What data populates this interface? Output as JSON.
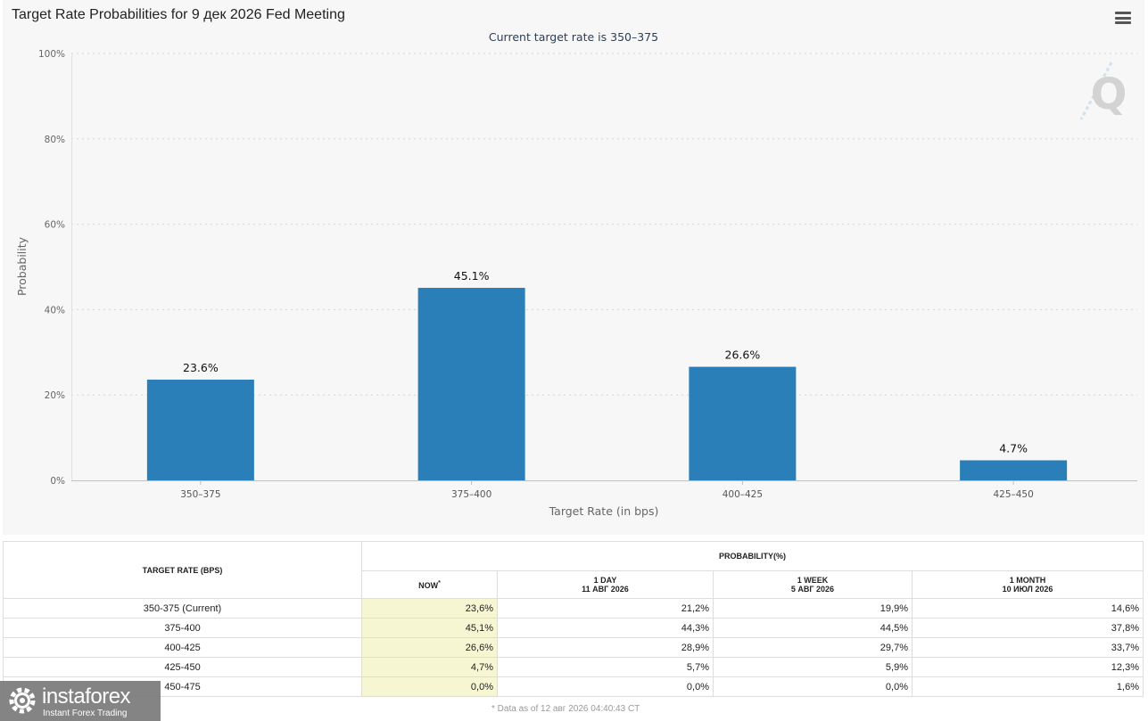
{
  "header": {
    "title": "Target Rate Probabilities for 9 дек 2026 Fed Meeting",
    "menu_icon": "hamburger-menu-icon"
  },
  "chart_data": {
    "type": "bar",
    "subtitle": "Current target rate is 350–375",
    "xlabel": "Target Rate (in bps)",
    "ylabel": "Probability",
    "categories": [
      "350–375",
      "375–400",
      "400–425",
      "425–450"
    ],
    "values": [
      23.6,
      45.1,
      26.6,
      4.7
    ],
    "data_labels": [
      "23.6%",
      "45.1%",
      "26.6%",
      "4.7%"
    ],
    "ylim": [
      0,
      100
    ],
    "yticks": [
      0,
      20,
      40,
      60,
      80,
      100
    ],
    "ytick_labels": [
      "0%",
      "20%",
      "40%",
      "60%",
      "80%",
      "100%"
    ],
    "grid": true,
    "bar_color": "#2a7fb8",
    "legend": "none"
  },
  "table": {
    "col_target": "TARGET RATE (BPS)",
    "col_probability": "PROBABILITY(%)",
    "subheaders": {
      "now": "NOW",
      "now_mark": "*",
      "day_label": "1 DAY",
      "day_date": "11 АВГ 2026",
      "week_label": "1 WEEK",
      "week_date": "5 АВГ 2026",
      "month_label": "1 MONTH",
      "month_date": "10 ИЮЛ 2026"
    },
    "rows": [
      {
        "rate": "350-375 (Current)",
        "now": "23,6%",
        "day": "21,2%",
        "week": "19,9%",
        "month": "14,6%"
      },
      {
        "rate": "375-400",
        "now": "45,1%",
        "day": "44,3%",
        "week": "44,5%",
        "month": "37,8%"
      },
      {
        "rate": "400-425",
        "now": "26,6%",
        "day": "28,9%",
        "week": "29,7%",
        "month": "33,7%"
      },
      {
        "rate": "425-450",
        "now": "4,7%",
        "day": "5,7%",
        "week": "5,9%",
        "month": "12,3%"
      },
      {
        "rate": "450-475",
        "now": "0,0%",
        "day": "0,0%",
        "week": "0,0%",
        "month": "1,6%"
      }
    ]
  },
  "footnote": "* Data as of 12 авг 2026 04:40:43 CT",
  "watermark": {
    "brand": "instaforex",
    "tagline": "Instant Forex Trading",
    "icon": "gear-logo-icon"
  }
}
